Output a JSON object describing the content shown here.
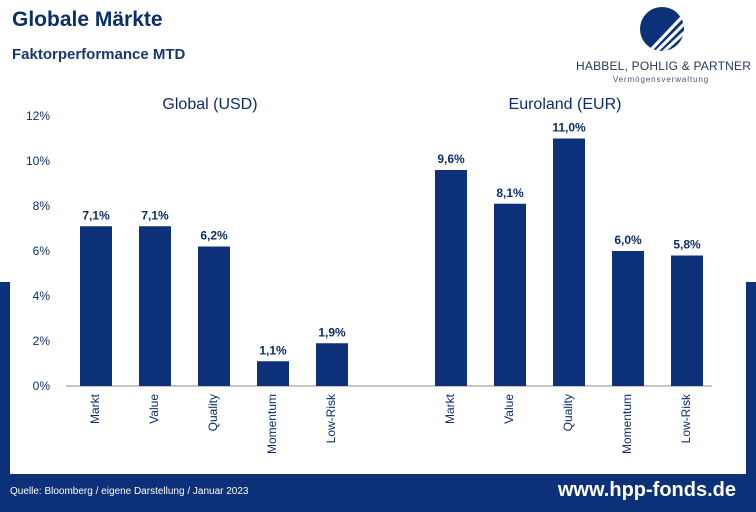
{
  "header": {
    "title": "Globale Märkte",
    "subtitle": "Faktorperformance MTD"
  },
  "brand": {
    "name": "HABBEL, POHLIG & PARTNER",
    "tagline": "Vermögensverwaltung",
    "logo_icon": "stripe-circle-logo"
  },
  "colors": {
    "primary": "#0c3178",
    "text": "#0b2d6b",
    "axis": "#8c8c8c"
  },
  "chart_data": {
    "type": "bar",
    "yticks": [
      "0%",
      "2%",
      "4%",
      "6%",
      "8%",
      "10%",
      "12%"
    ],
    "ylim": [
      0,
      12
    ],
    "groups": [
      {
        "title": "Global (USD)",
        "categories": [
          "Markt",
          "Value",
          "Quality",
          "Momentum",
          "Low-Risk"
        ],
        "values": [
          7.1,
          7.1,
          6.2,
          1.1,
          1.9
        ],
        "value_labels": [
          "7,1%",
          "7,1%",
          "6,2%",
          "1,1%",
          "1,9%"
        ]
      },
      {
        "title": "Euroland (EUR)",
        "categories": [
          "Markt",
          "Value",
          "Quality",
          "Momentum",
          "Low-Risk"
        ],
        "values": [
          9.6,
          8.1,
          11.0,
          6.0,
          5.8
        ],
        "value_labels": [
          "9,6%",
          "8,1%",
          "11,0%",
          "6,0%",
          "5,8%"
        ]
      }
    ]
  },
  "footer": {
    "source": "Quelle: Bloomberg / eigene Darstellung / Januar 2023",
    "website": "www.hpp-fonds.de"
  }
}
